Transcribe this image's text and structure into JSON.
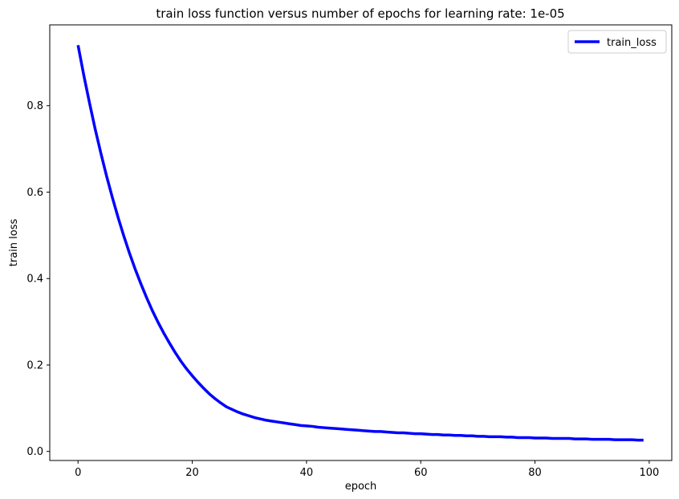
{
  "chart_data": {
    "type": "line",
    "title": "train loss function versus number of epochs for learning rate: 1e-05",
    "xlabel": "epoch",
    "ylabel": "train loss",
    "xlim": [
      -4.95,
      103.95
    ],
    "ylim": [
      -0.021,
      0.987
    ],
    "x_ticks": [
      0,
      20,
      40,
      60,
      80,
      100
    ],
    "y_ticks": [
      0.0,
      0.2,
      0.4,
      0.6,
      0.8
    ],
    "grid": false,
    "legend_position": "top-right",
    "series": [
      {
        "name": "train_loss",
        "color": "#0000ff",
        "x": [
          0,
          1,
          2,
          3,
          4,
          5,
          6,
          7,
          8,
          9,
          10,
          11,
          12,
          13,
          14,
          15,
          16,
          17,
          18,
          19,
          20,
          21,
          22,
          23,
          24,
          25,
          26,
          27,
          28,
          29,
          30,
          31,
          32,
          33,
          34,
          35,
          36,
          37,
          38,
          39,
          40,
          41,
          42,
          43,
          44,
          45,
          46,
          47,
          48,
          49,
          50,
          51,
          52,
          53,
          54,
          55,
          56,
          57,
          58,
          59,
          60,
          61,
          62,
          63,
          64,
          65,
          66,
          67,
          68,
          69,
          70,
          71,
          72,
          73,
          74,
          75,
          76,
          77,
          78,
          79,
          80,
          81,
          82,
          83,
          84,
          85,
          86,
          87,
          88,
          89,
          90,
          91,
          92,
          93,
          94,
          95,
          96,
          97,
          98,
          99
        ],
        "y": [
          0.94,
          0.871,
          0.807,
          0.746,
          0.69,
          0.637,
          0.588,
          0.542,
          0.499,
          0.459,
          0.422,
          0.388,
          0.356,
          0.326,
          0.299,
          0.274,
          0.251,
          0.229,
          0.209,
          0.191,
          0.175,
          0.16,
          0.146,
          0.133,
          0.122,
          0.112,
          0.103,
          0.097,
          0.091,
          0.086,
          0.082,
          0.078,
          0.075,
          0.072,
          0.07,
          0.068,
          0.066,
          0.064,
          0.062,
          0.06,
          0.059,
          0.058,
          0.056,
          0.055,
          0.054,
          0.053,
          0.052,
          0.051,
          0.05,
          0.049,
          0.048,
          0.047,
          0.046,
          0.046,
          0.045,
          0.044,
          0.043,
          0.043,
          0.042,
          0.041,
          0.041,
          0.04,
          0.039,
          0.039,
          0.038,
          0.038,
          0.037,
          0.037,
          0.036,
          0.036,
          0.035,
          0.035,
          0.034,
          0.034,
          0.034,
          0.033,
          0.033,
          0.032,
          0.032,
          0.032,
          0.031,
          0.031,
          0.031,
          0.03,
          0.03,
          0.03,
          0.03,
          0.029,
          0.029,
          0.029,
          0.028,
          0.028,
          0.028,
          0.028,
          0.027,
          0.027,
          0.027,
          0.027,
          0.026,
          0.026
        ]
      }
    ]
  }
}
